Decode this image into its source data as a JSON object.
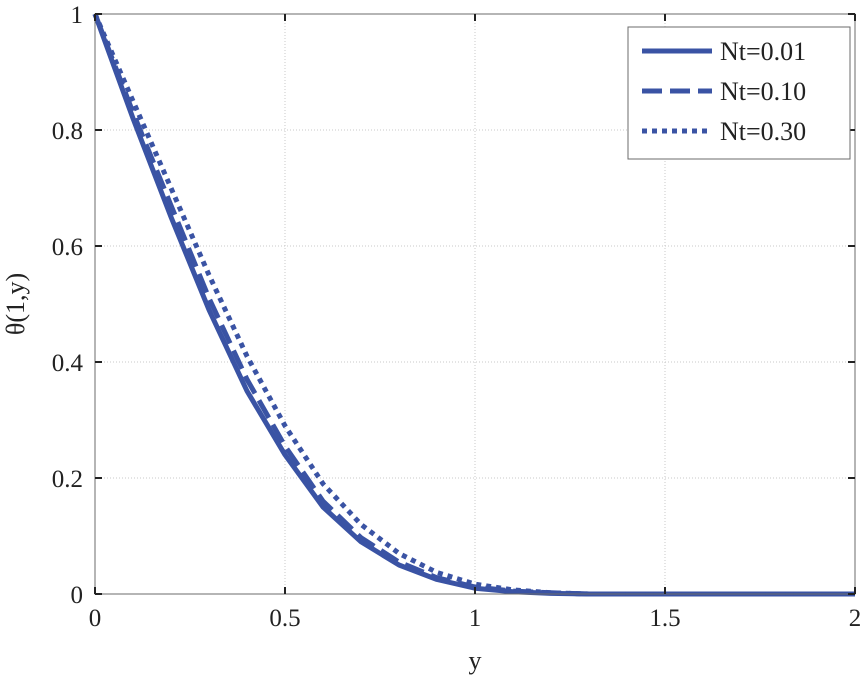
{
  "chart_data": {
    "type": "line",
    "title": "",
    "xlabel": "y",
    "ylabel": "θ(1,y)",
    "xlim": [
      0,
      2
    ],
    "ylim": [
      0,
      1
    ],
    "xticks": [
      "0",
      "0.5",
      "1",
      "1.5",
      "2"
    ],
    "yticks": [
      "0",
      "0.2",
      "0.4",
      "0.6",
      "0.8",
      "1"
    ],
    "grid": true,
    "legend_position": "top-right",
    "line_color": "#3a53a4",
    "series": [
      {
        "name": "Nt=0.01",
        "style": "solid",
        "x": [
          0,
          0.1,
          0.2,
          0.3,
          0.4,
          0.5,
          0.6,
          0.7,
          0.8,
          0.9,
          1.0,
          1.1,
          1.2,
          1.3,
          1.5,
          2.0
        ],
        "y": [
          1.0,
          0.82,
          0.65,
          0.49,
          0.35,
          0.24,
          0.15,
          0.09,
          0.05,
          0.025,
          0.01,
          0.004,
          0.001,
          0.0,
          0.0,
          0.0
        ]
      },
      {
        "name": "Nt=0.10",
        "style": "dashed",
        "x": [
          0,
          0.1,
          0.2,
          0.3,
          0.4,
          0.5,
          0.6,
          0.7,
          0.8,
          0.9,
          1.0,
          1.1,
          1.2,
          1.3,
          1.5,
          2.0
        ],
        "y": [
          1.0,
          0.83,
          0.67,
          0.51,
          0.37,
          0.255,
          0.16,
          0.097,
          0.055,
          0.028,
          0.012,
          0.005,
          0.002,
          0.0,
          0.0,
          0.0
        ]
      },
      {
        "name": "Nt=0.30",
        "style": "dotted",
        "x": [
          0,
          0.1,
          0.2,
          0.3,
          0.4,
          0.5,
          0.6,
          0.7,
          0.8,
          0.9,
          1.0,
          1.1,
          1.2,
          1.3,
          1.5,
          2.0
        ],
        "y": [
          1.0,
          0.85,
          0.7,
          0.55,
          0.41,
          0.29,
          0.19,
          0.12,
          0.07,
          0.037,
          0.017,
          0.007,
          0.002,
          0.0,
          0.0,
          0.0
        ]
      }
    ]
  }
}
